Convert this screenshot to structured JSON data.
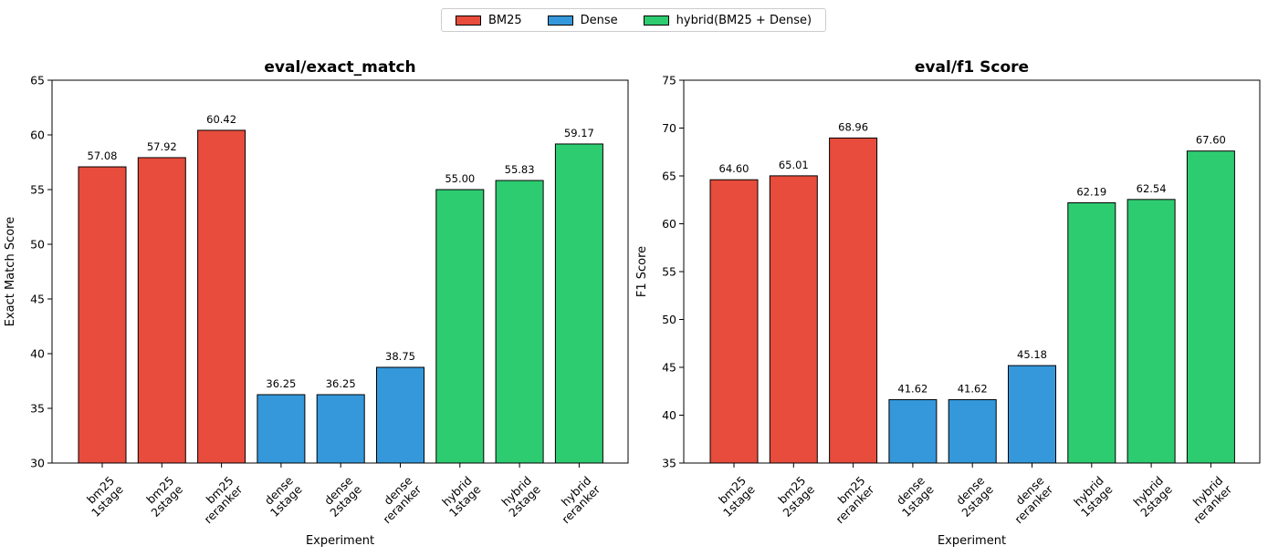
{
  "legend": [
    {
      "label": "BM25",
      "color": "#e74c3c"
    },
    {
      "label": "Dense",
      "color": "#3498db"
    },
    {
      "label": "hybrid(BM25 + Dense)",
      "color": "#2ecc71"
    }
  ],
  "chart_data": [
    {
      "type": "bar",
      "title": "eval/exact_match",
      "xlabel": "Experiment",
      "ylabel": "Exact Match Score",
      "ylim": [
        30,
        65
      ],
      "yticks": [
        30,
        35,
        40,
        45,
        50,
        55,
        60,
        65
      ],
      "categories": [
        [
          "bm25",
          "1stage"
        ],
        [
          "bm25",
          "2stage"
        ],
        [
          "bm25",
          "reranker"
        ],
        [
          "dense",
          "1stage"
        ],
        [
          "dense",
          "2stage"
        ],
        [
          "dense",
          "reranker"
        ],
        [
          "hybrid",
          "1stage"
        ],
        [
          "hybrid",
          "2stage"
        ],
        [
          "hybrid",
          "reranker"
        ]
      ],
      "groups": [
        "BM25",
        "BM25",
        "BM25",
        "Dense",
        "Dense",
        "Dense",
        "hybrid(BM25 + Dense)",
        "hybrid(BM25 + Dense)",
        "hybrid(BM25 + Dense)"
      ],
      "values": [
        57.08,
        57.92,
        60.42,
        36.25,
        36.25,
        38.75,
        55.0,
        55.83,
        59.17
      ],
      "labels": [
        "57.08",
        "57.92",
        "60.42",
        "36.25",
        "36.25",
        "38.75",
        "55.00",
        "55.83",
        "59.17"
      ]
    },
    {
      "type": "bar",
      "title": "eval/f1 Score",
      "xlabel": "Experiment",
      "ylabel": "F1 Score",
      "ylim": [
        35,
        75
      ],
      "yticks": [
        35,
        40,
        45,
        50,
        55,
        60,
        65,
        70,
        75
      ],
      "categories": [
        [
          "bm25",
          "1stage"
        ],
        [
          "bm25",
          "2stage"
        ],
        [
          "bm25",
          "reranker"
        ],
        [
          "dense",
          "1stage"
        ],
        [
          "dense",
          "2stage"
        ],
        [
          "dense",
          "reranker"
        ],
        [
          "hybrid",
          "1stage"
        ],
        [
          "hybrid",
          "2stage"
        ],
        [
          "hybrid",
          "reranker"
        ]
      ],
      "groups": [
        "BM25",
        "BM25",
        "BM25",
        "Dense",
        "Dense",
        "Dense",
        "hybrid(BM25 + Dense)",
        "hybrid(BM25 + Dense)",
        "hybrid(BM25 + Dense)"
      ],
      "values": [
        64.6,
        65.01,
        68.96,
        41.62,
        41.62,
        45.18,
        62.19,
        62.54,
        67.6
      ],
      "labels": [
        "64.60",
        "65.01",
        "68.96",
        "41.62",
        "41.62",
        "45.18",
        "62.19",
        "62.54",
        "67.60"
      ]
    }
  ]
}
